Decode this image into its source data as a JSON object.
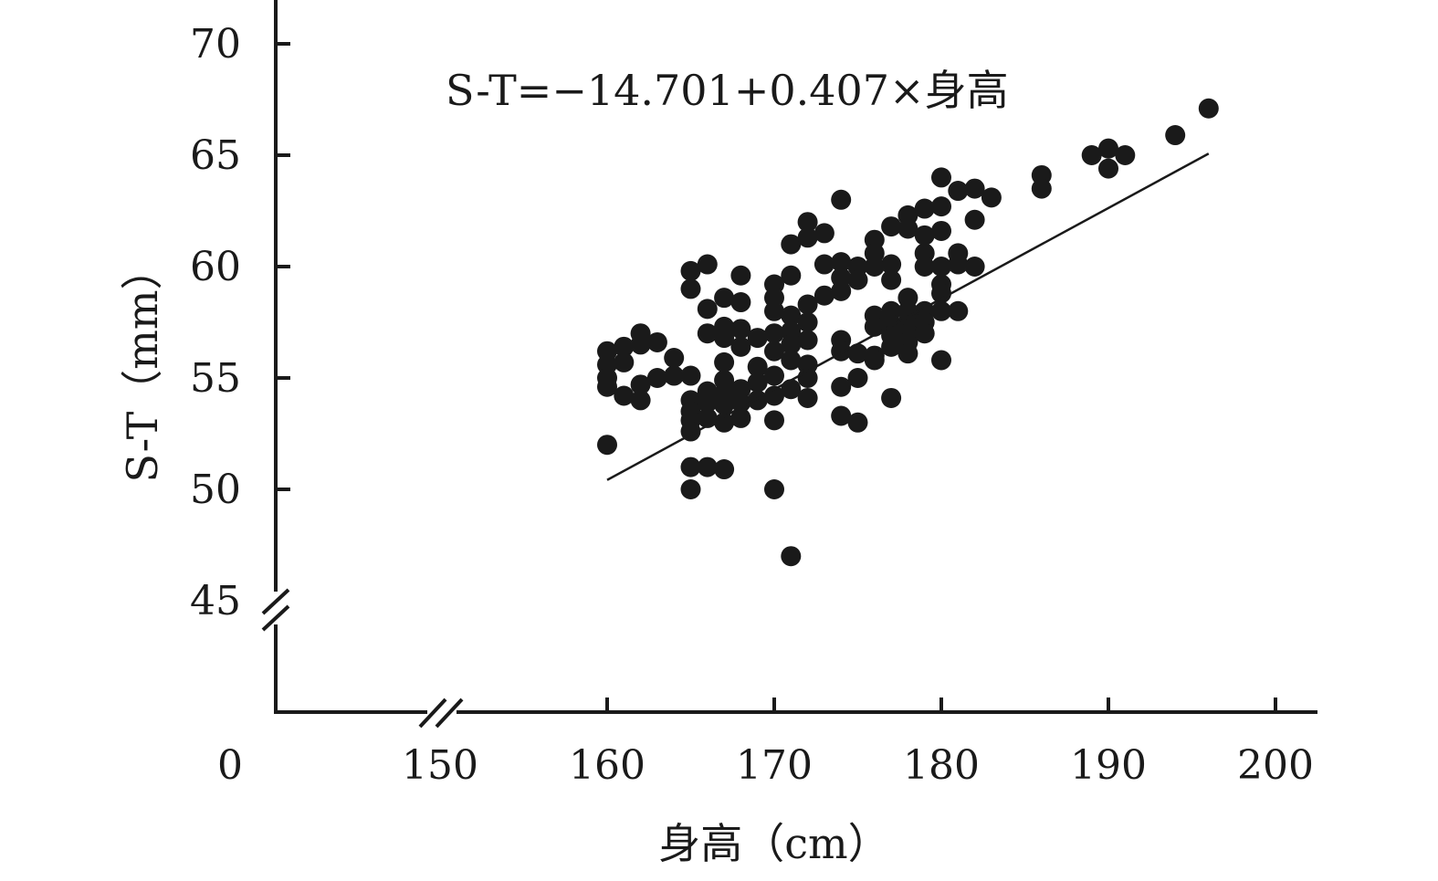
{
  "chart_data": {
    "type": "scatter",
    "title": "",
    "xlabel": "身高（cm）",
    "ylabel": "S-T（mm）",
    "annotation": "S-T=−14.701+0.407×身高",
    "x_break_label": "0",
    "x_ticks": [
      150,
      160,
      170,
      180,
      190,
      200
    ],
    "y_ticks": [
      45,
      50,
      55,
      60,
      65,
      70
    ],
    "xlim": [
      150,
      202
    ],
    "ylim": [
      45,
      72
    ],
    "axis_breaks": {
      "x": true,
      "y": true
    },
    "grid": false,
    "legend": "none",
    "colors": {
      "points": "#1a1a1a",
      "axes": "#1a1a1a"
    },
    "trendline": {
      "intercept": -14.701,
      "slope": 0.407,
      "x_range": [
        160,
        196
      ]
    },
    "points": [
      [
        160,
        56.2
      ],
      [
        160,
        55.6
      ],
      [
        160,
        55.0
      ],
      [
        160,
        54.6
      ],
      [
        160,
        52.0
      ],
      [
        161,
        56.4
      ],
      [
        161,
        55.7
      ],
      [
        161,
        54.2
      ],
      [
        162,
        57.0
      ],
      [
        162,
        56.5
      ],
      [
        162,
        54.7
      ],
      [
        162,
        54.0
      ],
      [
        163,
        56.6
      ],
      [
        163,
        55.0
      ],
      [
        164,
        55.9
      ],
      [
        164,
        55.1
      ],
      [
        165,
        59.8
      ],
      [
        165,
        59.0
      ],
      [
        165,
        55.1
      ],
      [
        165,
        54.0
      ],
      [
        165,
        53.5
      ],
      [
        165,
        53.1
      ],
      [
        165,
        52.6
      ],
      [
        165,
        51.0
      ],
      [
        165,
        50.0
      ],
      [
        166,
        60.1
      ],
      [
        166,
        58.1
      ],
      [
        166,
        57.0
      ],
      [
        166,
        54.4
      ],
      [
        166,
        53.9
      ],
      [
        166,
        53.2
      ],
      [
        166,
        51.0
      ],
      [
        167,
        58.6
      ],
      [
        167,
        57.3
      ],
      [
        167,
        56.8
      ],
      [
        167,
        55.7
      ],
      [
        167,
        54.9
      ],
      [
        167,
        54.3
      ],
      [
        167,
        53.8
      ],
      [
        167,
        53.0
      ],
      [
        167,
        50.9
      ],
      [
        168,
        59.6
      ],
      [
        168,
        58.4
      ],
      [
        168,
        57.2
      ],
      [
        168,
        56.4
      ],
      [
        168,
        54.5
      ],
      [
        168,
        53.9
      ],
      [
        168,
        53.2
      ],
      [
        169,
        56.8
      ],
      [
        169,
        55.5
      ],
      [
        169,
        54.8
      ],
      [
        169,
        54.0
      ],
      [
        170,
        59.2
      ],
      [
        170,
        58.6
      ],
      [
        170,
        58.0
      ],
      [
        170,
        57.0
      ],
      [
        170,
        56.2
      ],
      [
        170,
        55.1
      ],
      [
        170,
        54.2
      ],
      [
        170,
        53.1
      ],
      [
        170,
        50.0
      ],
      [
        171,
        61.0
      ],
      [
        171,
        59.6
      ],
      [
        171,
        57.8
      ],
      [
        171,
        57.1
      ],
      [
        171,
        56.5
      ],
      [
        171,
        55.8
      ],
      [
        171,
        54.5
      ],
      [
        171,
        47.0
      ],
      [
        172,
        62.0
      ],
      [
        172,
        61.3
      ],
      [
        172,
        58.3
      ],
      [
        172,
        57.5
      ],
      [
        172,
        56.7
      ],
      [
        172,
        55.6
      ],
      [
        172,
        55.0
      ],
      [
        172,
        54.1
      ],
      [
        173,
        61.5
      ],
      [
        173,
        60.1
      ],
      [
        173,
        58.7
      ],
      [
        174,
        63.0
      ],
      [
        174,
        60.2
      ],
      [
        174,
        59.5
      ],
      [
        174,
        58.9
      ],
      [
        174,
        56.7
      ],
      [
        174,
        56.2
      ],
      [
        174,
        54.6
      ],
      [
        174,
        53.3
      ],
      [
        175,
        60.0
      ],
      [
        175,
        59.4
      ],
      [
        175,
        56.1
      ],
      [
        175,
        55.0
      ],
      [
        175,
        53.0
      ],
      [
        176,
        61.2
      ],
      [
        176,
        60.6
      ],
      [
        176,
        60.0
      ],
      [
        176,
        57.8
      ],
      [
        176,
        57.3
      ],
      [
        176,
        56.0
      ],
      [
        176,
        55.8
      ],
      [
        177,
        61.8
      ],
      [
        177,
        60.1
      ],
      [
        177,
        59.4
      ],
      [
        177,
        58.0
      ],
      [
        177,
        57.4
      ],
      [
        177,
        56.9
      ],
      [
        177,
        56.4
      ],
      [
        177,
        54.1
      ],
      [
        178,
        62.3
      ],
      [
        178,
        61.7
      ],
      [
        178,
        58.6
      ],
      [
        178,
        58.0
      ],
      [
        178,
        57.5
      ],
      [
        178,
        57.0
      ],
      [
        178,
        56.6
      ],
      [
        178,
        56.1
      ],
      [
        179,
        62.6
      ],
      [
        179,
        61.4
      ],
      [
        179,
        60.6
      ],
      [
        179,
        60.0
      ],
      [
        179,
        58.0
      ],
      [
        179,
        57.5
      ],
      [
        179,
        57.0
      ],
      [
        180,
        64.0
      ],
      [
        180,
        62.7
      ],
      [
        180,
        61.6
      ],
      [
        180,
        60.0
      ],
      [
        180,
        59.2
      ],
      [
        180,
        58.8
      ],
      [
        180,
        58.0
      ],
      [
        180,
        55.8
      ],
      [
        181,
        63.4
      ],
      [
        181,
        60.6
      ],
      [
        181,
        60.1
      ],
      [
        181,
        58.0
      ],
      [
        182,
        63.5
      ],
      [
        182,
        62.1
      ],
      [
        182,
        60.0
      ],
      [
        183,
        63.1
      ],
      [
        186,
        64.1
      ],
      [
        186,
        63.5
      ],
      [
        189,
        65.0
      ],
      [
        190,
        65.3
      ],
      [
        190,
        64.4
      ],
      [
        191,
        65.0
      ],
      [
        194,
        65.9
      ],
      [
        196,
        67.1
      ]
    ]
  }
}
